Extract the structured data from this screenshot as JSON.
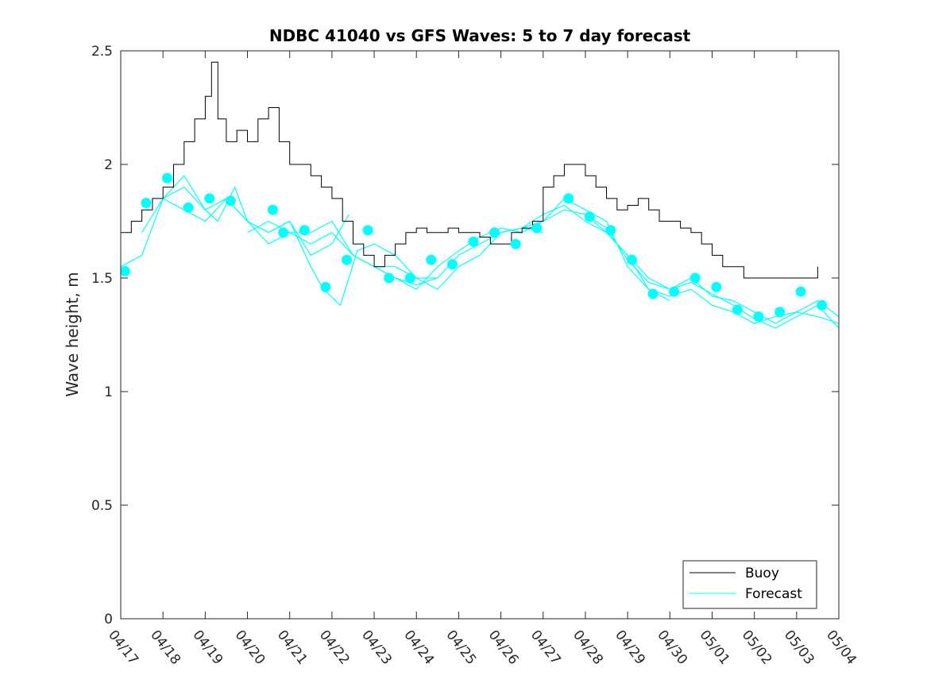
{
  "chart_data": {
    "type": "line",
    "title": "NDBC 41040 vs GFS Waves: 5 to 7 day forecast",
    "xlabel": "",
    "ylabel": "Wave height, m",
    "xlim": [
      "04/17",
      "05/04"
    ],
    "ylim": [
      0,
      2.5
    ],
    "x_ticks": [
      "04/17",
      "04/18",
      "04/19",
      "04/20",
      "04/21",
      "04/22",
      "04/23",
      "04/24",
      "04/25",
      "04/26",
      "04/27",
      "04/28",
      "04/29",
      "04/30",
      "05/01",
      "05/02",
      "05/03",
      "05/04"
    ],
    "y_ticks": [
      "0",
      "0.5",
      "1",
      "1.5",
      "2",
      "2.5"
    ],
    "grid": false,
    "legend": {
      "position": "bottom-right",
      "entries": [
        "Buoy",
        "Forecast"
      ]
    },
    "colors": {
      "buoy": "#000000",
      "forecast": "#00ffff",
      "axes": "#262626"
    },
    "series": [
      {
        "name": "Buoy",
        "style": "line",
        "x_days": [
          0,
          0.25,
          0.5,
          0.75,
          1.0,
          1.25,
          1.5,
          1.75,
          2.0,
          2.15,
          2.3,
          2.5,
          2.75,
          3.0,
          3.25,
          3.5,
          3.75,
          4.0,
          4.25,
          4.5,
          4.75,
          5.0,
          5.25,
          5.5,
          5.75,
          6.0,
          6.25,
          6.5,
          6.75,
          7.0,
          7.25,
          7.5,
          7.75,
          8.0,
          8.25,
          8.5,
          8.75,
          9.0,
          9.25,
          9.5,
          9.75,
          10.0,
          10.25,
          10.5,
          10.75,
          11.0,
          11.25,
          11.5,
          11.75,
          12.0,
          12.25,
          12.5,
          12.75,
          13.0,
          13.25,
          13.5,
          13.75,
          14.0,
          14.25,
          14.5,
          14.75,
          15.0,
          15.25,
          15.5,
          15.75,
          16.0,
          16.25,
          16.5,
          16.75,
          17.0
        ],
        "values": [
          1.7,
          1.75,
          1.8,
          1.85,
          1.9,
          2.0,
          2.1,
          2.2,
          2.3,
          2.45,
          2.2,
          2.1,
          2.15,
          2.1,
          2.2,
          2.25,
          2.1,
          2.0,
          2.0,
          1.95,
          1.9,
          1.85,
          1.75,
          1.65,
          1.6,
          1.55,
          1.6,
          1.65,
          1.7,
          1.72,
          1.7,
          1.7,
          1.72,
          1.7,
          1.7,
          1.68,
          1.65,
          1.65,
          1.7,
          1.72,
          1.75,
          1.9,
          1.95,
          2.0,
          2.0,
          1.95,
          1.9,
          1.85,
          1.8,
          1.82,
          1.85,
          1.8,
          1.75,
          1.75,
          1.72,
          1.7,
          1.65,
          1.6,
          1.55,
          1.55,
          1.5,
          1.5,
          1.5,
          1.5,
          1.5,
          1.5,
          1.5,
          1.55,
          null,
          null
        ]
      },
      {
        "name": "Forecast",
        "style": "markers",
        "x_days": [
          0.1,
          0.6,
          1.1,
          1.6,
          2.1,
          2.6,
          3.6,
          3.85,
          4.35,
          4.85,
          5.35,
          5.85,
          6.35,
          6.85,
          7.35,
          7.85,
          8.35,
          8.85,
          9.35,
          9.85,
          10.6,
          11.1,
          11.6,
          12.1,
          12.6,
          13.1,
          13.6,
          14.1,
          14.6,
          15.1,
          15.6,
          16.1,
          16.6
        ],
        "values": [
          1.53,
          1.83,
          1.94,
          1.81,
          1.85,
          1.84,
          1.8,
          1.7,
          1.71,
          1.46,
          1.58,
          1.71,
          1.5,
          1.5,
          1.58,
          1.56,
          1.66,
          1.7,
          1.65,
          1.72,
          1.85,
          1.77,
          1.71,
          1.58,
          1.43,
          1.44,
          1.5,
          1.46,
          1.36,
          1.33,
          1.35,
          1.44,
          1.38
        ]
      }
    ],
    "forecast_runs": [
      {
        "x_days": [
          0.0,
          0.5,
          1.0,
          1.5,
          2.0,
          2.3,
          2.7,
          3.0,
          3.5,
          4.0,
          4.5,
          5.0,
          5.4
        ],
        "values": [
          1.55,
          1.6,
          1.85,
          1.95,
          1.8,
          1.75,
          1.9,
          1.75,
          1.7,
          1.75,
          1.6,
          1.65,
          1.78
        ]
      },
      {
        "x_days": [
          0.5,
          1.0,
          1.5,
          2.0,
          2.5,
          3.0,
          3.5,
          4.0,
          4.5,
          5.0,
          5.5,
          6.0,
          6.5,
          7.0,
          7.5
        ],
        "values": [
          1.7,
          1.85,
          1.8,
          1.75,
          1.85,
          1.75,
          1.65,
          1.7,
          1.65,
          1.7,
          1.6,
          1.55,
          1.55,
          1.5,
          1.5
        ]
      },
      {
        "x_days": [
          1.0,
          1.5,
          2.0,
          2.5,
          3.0,
          3.5,
          4.0,
          4.5,
          4.8,
          5.2,
          5.6,
          6.0,
          6.5,
          7.0,
          7.5,
          8.0,
          8.5,
          9.0,
          9.5,
          10.0
        ],
        "values": [
          1.85,
          1.9,
          1.8,
          1.85,
          1.75,
          1.7,
          1.75,
          1.55,
          1.45,
          1.38,
          1.62,
          1.65,
          1.6,
          1.5,
          1.45,
          1.55,
          1.6,
          1.7,
          1.72,
          1.7
        ]
      },
      {
        "x_days": [
          3.0,
          3.5,
          4.0,
          4.5,
          5.0,
          5.5,
          6.0,
          6.5,
          7.0,
          7.5,
          8.0,
          8.5,
          9.0,
          9.5,
          10.0,
          10.5,
          11.0,
          11.5,
          12.0,
          12.5,
          13.0
        ],
        "values": [
          1.7,
          1.75,
          1.7,
          1.7,
          1.75,
          1.6,
          1.55,
          1.5,
          1.47,
          1.5,
          1.6,
          1.65,
          1.7,
          1.72,
          1.75,
          1.8,
          1.78,
          1.7,
          1.6,
          1.45,
          1.4
        ]
      },
      {
        "x_days": [
          6.0,
          6.5,
          7.0,
          7.5,
          8.0,
          8.5,
          9.0,
          9.5,
          10.0,
          10.5,
          11.0,
          11.5,
          12.0,
          12.5,
          13.0,
          13.5,
          14.0,
          14.5,
          15.0,
          15.5,
          16.0,
          16.5,
          17.0
        ],
        "values": [
          1.55,
          1.5,
          1.45,
          1.55,
          1.62,
          1.68,
          1.72,
          1.7,
          1.75,
          1.85,
          1.8,
          1.75,
          1.55,
          1.45,
          1.42,
          1.45,
          1.38,
          1.35,
          1.3,
          1.33,
          1.35,
          1.33,
          1.3
        ]
      },
      {
        "x_days": [
          9.0,
          9.5,
          10.0,
          10.5,
          11.0,
          11.5,
          12.0,
          12.5,
          13.0,
          13.5,
          14.0,
          14.5,
          15.0,
          15.5,
          16.0,
          16.5,
          17.0
        ],
        "values": [
          1.7,
          1.72,
          1.78,
          1.82,
          1.75,
          1.7,
          1.6,
          1.5,
          1.45,
          1.5,
          1.42,
          1.4,
          1.35,
          1.3,
          1.35,
          1.4,
          1.33
        ]
      },
      {
        "x_days": [
          11.0,
          11.5,
          12.0,
          12.5,
          13.0,
          13.5,
          14.0,
          14.5,
          15.0,
          15.5,
          16.0,
          16.5,
          17.0
        ],
        "values": [
          1.78,
          1.72,
          1.58,
          1.48,
          1.45,
          1.48,
          1.43,
          1.38,
          1.32,
          1.28,
          1.33,
          1.38,
          1.28
        ]
      }
    ]
  }
}
